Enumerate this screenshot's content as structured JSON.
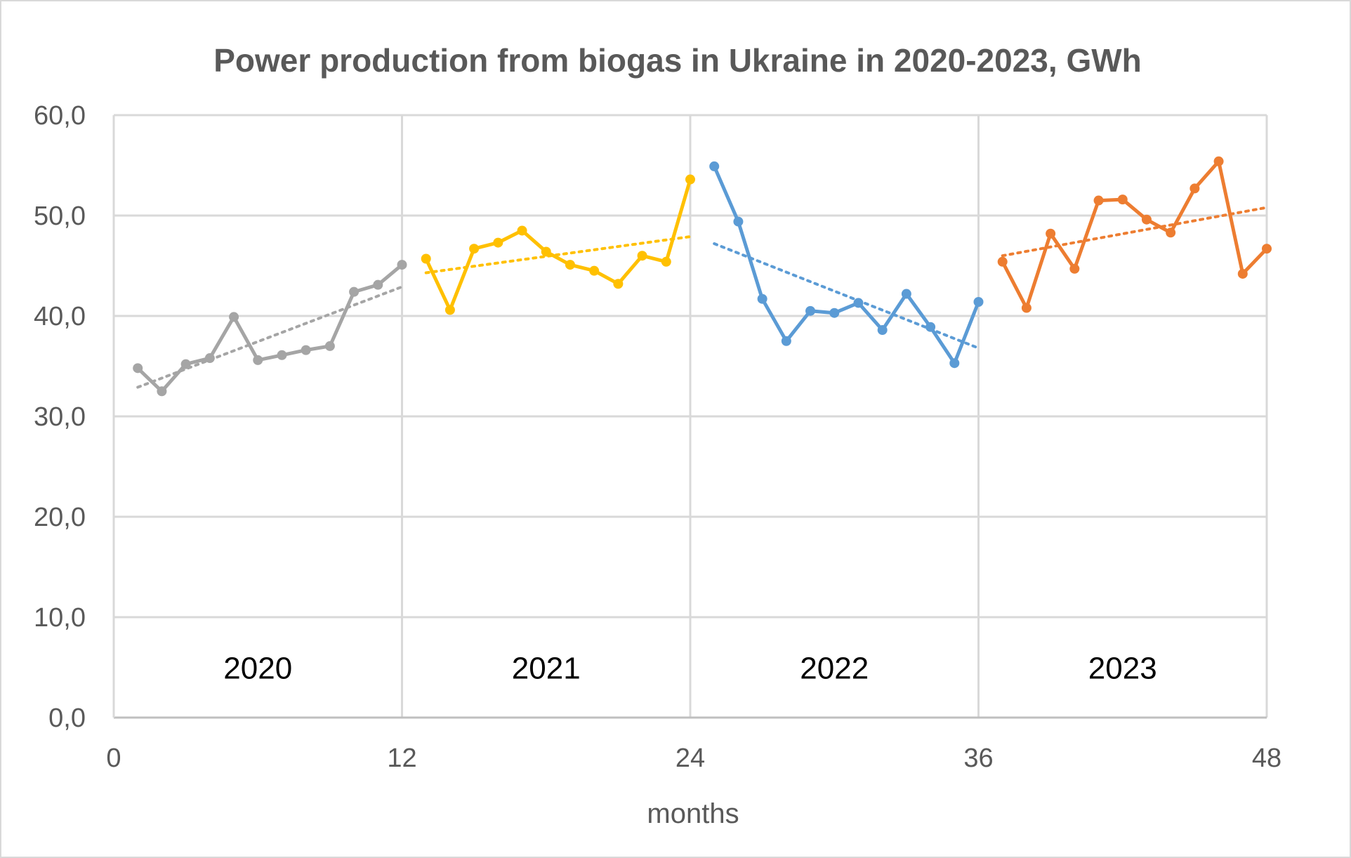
{
  "chart_data": {
    "type": "line",
    "title": "Power production from biogas in Ukraine in 2020-2023, GWh",
    "xlabel": "months",
    "ylabel": "",
    "xlim": [
      0,
      48
    ],
    "ylim": [
      0,
      60
    ],
    "x_ticks": [
      0,
      12,
      24,
      36,
      48
    ],
    "x_tick_labels": [
      "0",
      "12",
      "24",
      "36",
      "48"
    ],
    "y_ticks": [
      0,
      10,
      20,
      30,
      40,
      50,
      60
    ],
    "y_tick_labels": [
      "0,0",
      "10,0",
      "20,0",
      "30,0",
      "40,0",
      "50,0",
      "60,0"
    ],
    "grid": true,
    "legend": "none",
    "annotations": [
      {
        "text": "2020",
        "x": 6,
        "y": 5
      },
      {
        "text": "2021",
        "x": 18,
        "y": 5
      },
      {
        "text": "2022",
        "x": 30,
        "y": 5
      },
      {
        "text": "2023",
        "x": 42,
        "y": 5
      }
    ],
    "series": [
      {
        "color": "#a5a5a5",
        "x": [
          1,
          2,
          3,
          4,
          5,
          6,
          7,
          8,
          9,
          10,
          11,
          12
        ],
        "y": [
          34.8,
          32.5,
          35.2,
          35.8,
          39.9,
          35.6,
          36.1,
          36.6,
          37.0,
          42.4,
          43.1,
          45.1
        ],
        "trendline": {
          "x": [
            1,
            12
          ],
          "y": [
            32.9,
            42.9
          ]
        }
      },
      {
        "color": "#ffc000",
        "x": [
          13,
          14,
          15,
          16,
          17,
          18,
          19,
          20,
          21,
          22,
          23,
          24
        ],
        "y": [
          45.7,
          40.6,
          46.7,
          47.3,
          48.5,
          46.4,
          45.1,
          44.5,
          43.2,
          46.0,
          45.4,
          53.6
        ],
        "trendline": {
          "x": [
            13,
            24
          ],
          "y": [
            44.3,
            47.9
          ]
        }
      },
      {
        "color": "#5b9bd5",
        "x": [
          25,
          26,
          27,
          28,
          29,
          30,
          31,
          32,
          33,
          34,
          35,
          36
        ],
        "y": [
          54.9,
          49.4,
          41.7,
          37.5,
          40.5,
          40.3,
          41.3,
          38.6,
          42.2,
          38.9,
          35.3,
          41.4
        ],
        "trendline": {
          "x": [
            25,
            36
          ],
          "y": [
            47.2,
            36.8
          ]
        }
      },
      {
        "color": "#ed7d31",
        "x": [
          37,
          38,
          39,
          40,
          41,
          42,
          43,
          44,
          45,
          46,
          47,
          48
        ],
        "y": [
          45.4,
          40.8,
          48.2,
          44.7,
          51.5,
          51.6,
          49.6,
          48.3,
          52.7,
          55.4,
          44.2,
          46.7
        ],
        "trendline": {
          "x": [
            37,
            48
          ],
          "y": [
            46.0,
            50.8
          ]
        }
      }
    ]
  }
}
